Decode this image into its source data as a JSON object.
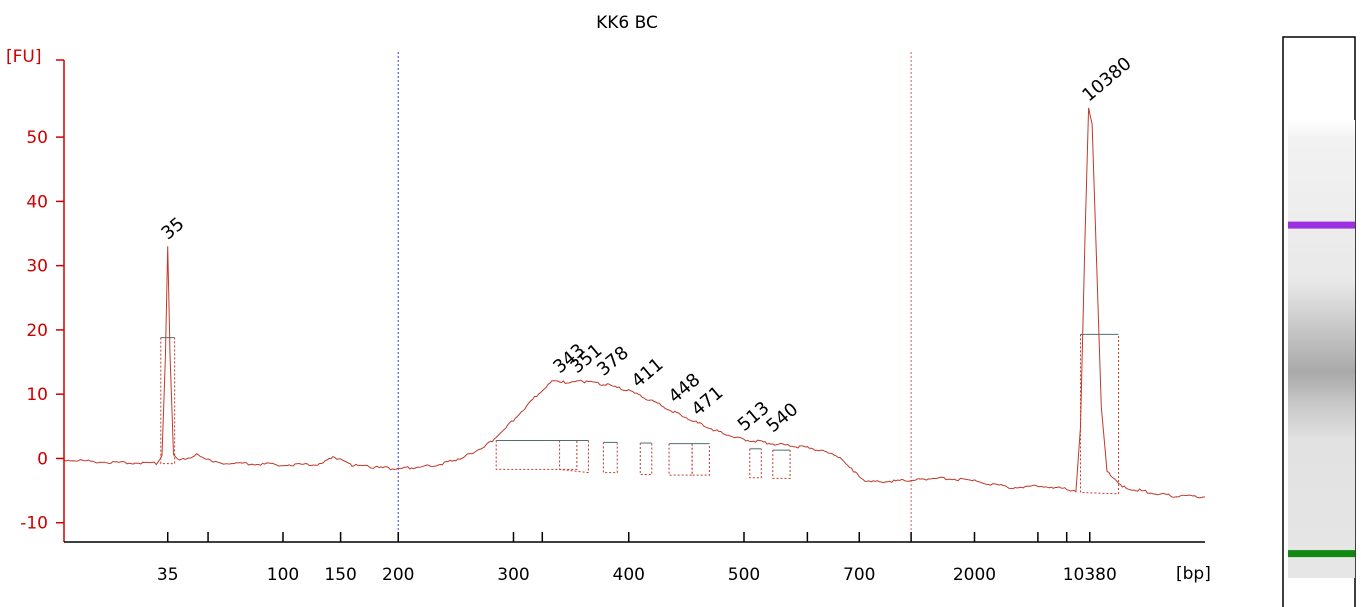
{
  "chart_data": {
    "type": "line",
    "title": "KK6 BC",
    "ylabel": "[FU]",
    "xlabel": "[bp]",
    "ylim": [
      -13,
      62
    ],
    "y_ticks": [
      "50",
      "40",
      "30",
      "20",
      "10",
      "0",
      "-10"
    ],
    "y_tick_values": [
      50,
      40,
      30,
      20,
      10,
      0,
      -10
    ],
    "x_ticks": [
      "35",
      "100",
      "150",
      "200",
      "300",
      "400",
      "500",
      "700",
      "2000",
      "10380"
    ],
    "x_tick_positions": [
      0.0,
      1.0,
      1.5,
      2.0,
      3.0,
      4.0,
      5.0,
      6.0,
      7.0,
      8.0
    ],
    "x_minor_positions": [
      0.35,
      3.25,
      5.55,
      6.45,
      7.55,
      7.8
    ],
    "xlim": [
      -0.9,
      9.0
    ],
    "marker_lines": [
      {
        "name": "lower-marker-line",
        "x": 2.0,
        "color": "#3a3ad8"
      },
      {
        "name": "upper-marker-line",
        "x": 6.45,
        "color": "#d06060"
      }
    ],
    "series": [
      {
        "color": "#c0392b",
        "points": [
          [
            -0.9,
            -0.2
          ],
          [
            -0.6,
            -0.5
          ],
          [
            -0.3,
            -0.7
          ],
          [
            -0.1,
            -0.8
          ],
          [
            -0.05,
            0.5
          ],
          [
            -0.02,
            16
          ],
          [
            0.0,
            33
          ],
          [
            0.02,
            16
          ],
          [
            0.05,
            0.5
          ],
          [
            0.1,
            -0.4
          ],
          [
            0.25,
            0.6
          ],
          [
            0.45,
            -0.7
          ],
          [
            0.7,
            -0.8
          ],
          [
            1.0,
            -1.0
          ],
          [
            1.3,
            -0.9
          ],
          [
            1.45,
            0.2
          ],
          [
            1.6,
            -1.0
          ],
          [
            1.8,
            -1.4
          ],
          [
            2.0,
            -1.6
          ],
          [
            2.2,
            -1.3
          ],
          [
            2.4,
            -0.8
          ],
          [
            2.6,
            0.5
          ],
          [
            2.8,
            2.5
          ],
          [
            3.0,
            6.0
          ],
          [
            3.2,
            9.8
          ],
          [
            3.35,
            12.2
          ],
          [
            3.45,
            11.8
          ],
          [
            3.6,
            12.0
          ],
          [
            3.8,
            11.5
          ],
          [
            4.0,
            10.5
          ],
          [
            4.2,
            9.0
          ],
          [
            4.4,
            7.2
          ],
          [
            4.6,
            5.5
          ],
          [
            4.8,
            4.0
          ],
          [
            5.0,
            3.0
          ],
          [
            5.2,
            2.4
          ],
          [
            5.4,
            2.0
          ],
          [
            5.6,
            1.5
          ],
          [
            5.8,
            0.5
          ],
          [
            5.95,
            -2.0
          ],
          [
            6.05,
            -3.7
          ],
          [
            6.3,
            -3.5
          ],
          [
            6.5,
            -3.3
          ],
          [
            6.7,
            -3.0
          ],
          [
            7.0,
            -3.5
          ],
          [
            7.3,
            -4.5
          ],
          [
            7.6,
            -4.3
          ],
          [
            7.8,
            -4.8
          ],
          [
            7.88,
            -5.0
          ],
          [
            7.92,
            5
          ],
          [
            7.96,
            35
          ],
          [
            7.99,
            54.5
          ],
          [
            8.02,
            52
          ],
          [
            8.06,
            30
          ],
          [
            8.1,
            8
          ],
          [
            8.15,
            -2
          ],
          [
            8.3,
            -4.5
          ],
          [
            8.5,
            -5.2
          ],
          [
            8.7,
            -5.8
          ],
          [
            9.0,
            -6.0
          ]
        ]
      }
    ],
    "peak_labels": [
      {
        "label": "35",
        "x": 0.0,
        "y": 33,
        "color": "#2e8b2e"
      },
      {
        "label": "343",
        "x": 3.4,
        "y": 12.2,
        "color": "#000000"
      },
      {
        "label": "351",
        "x": 3.55,
        "y": 12.2,
        "color": "#000000"
      },
      {
        "label": "378",
        "x": 3.78,
        "y": 11.8,
        "color": "#000000"
      },
      {
        "label": "411",
        "x": 4.08,
        "y": 10.0,
        "color": "#000000"
      },
      {
        "label": "448",
        "x": 4.4,
        "y": 7.6,
        "color": "#000000"
      },
      {
        "label": "471",
        "x": 4.6,
        "y": 5.6,
        "color": "#000000"
      },
      {
        "label": "513",
        "x": 5.0,
        "y": 3.2,
        "color": "#000000"
      },
      {
        "label": "540",
        "x": 5.25,
        "y": 3.0,
        "color": "#000000"
      },
      {
        "label": "10380",
        "x": 7.99,
        "y": 54.5,
        "color": "#9b30e0"
      }
    ],
    "peak_regions": [
      {
        "x0": 2.85,
        "x1": 3.55,
        "base_left": -1.7,
        "base_right": -1.7,
        "level": 2.8
      },
      {
        "x0": 3.4,
        "x1": 3.65,
        "base_left": -1.7,
        "base_right": -2.2,
        "level": 2.8
      },
      {
        "x0": 3.78,
        "x1": 3.9,
        "base_left": -2.2,
        "base_right": -2.2,
        "level": 2.5
      },
      {
        "x0": 4.1,
        "x1": 4.2,
        "base_left": -2.5,
        "base_right": -2.5,
        "level": 2.4
      },
      {
        "x0": 4.35,
        "x1": 4.55,
        "base_left": -2.6,
        "base_right": -2.6,
        "level": 2.3
      },
      {
        "x0": 4.55,
        "x1": 4.7,
        "base_left": -2.6,
        "base_right": -2.6,
        "level": 2.3
      },
      {
        "x0": 5.05,
        "x1": 5.15,
        "base_left": -3.0,
        "base_right": -3.0,
        "level": 1.5
      },
      {
        "x0": 5.25,
        "x1": 5.4,
        "base_left": -3.1,
        "base_right": -3.1,
        "level": 1.3
      },
      {
        "x0": -0.06,
        "x1": 0.06,
        "base_left": -0.8,
        "base_right": -0.8,
        "level": 18.8
      },
      {
        "x0": 7.92,
        "x1": 8.25,
        "base_left": -5.3,
        "base_right": -5.5,
        "level": 19.3
      }
    ],
    "gel_bands": [
      {
        "name": "upper-marker-band",
        "position": 0.2,
        "color": "#9b30e0"
      },
      {
        "name": "lower-marker-band",
        "position": 0.95,
        "color": "#118811"
      }
    ]
  }
}
